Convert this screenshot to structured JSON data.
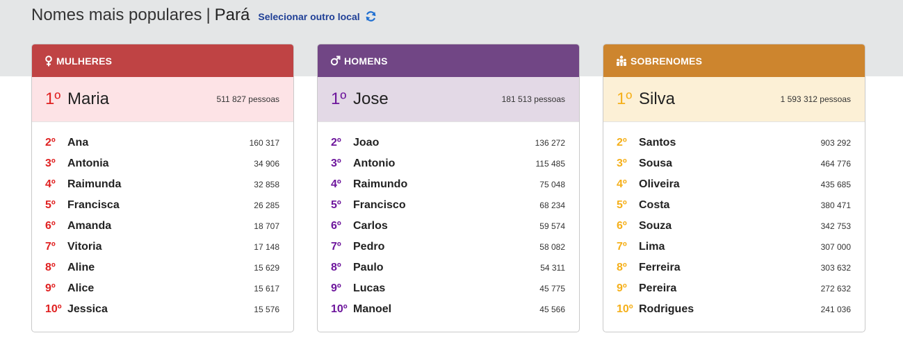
{
  "header": {
    "title": "Nomes mais populares",
    "separator": "|",
    "place": "Pará",
    "change_location": "Selecionar outro local",
    "refresh_icon": "refresh-icon"
  },
  "colors": {
    "women_head": "#bf4344",
    "men_head": "#714685",
    "surnames_head": "#cd852e",
    "women_rank": "#e02121",
    "men_rank": "#6d169c",
    "surnames_rank": "#f5b01b"
  },
  "women": {
    "title": "MULHERES",
    "icon": "female-icon",
    "top": {
      "rank": "1º",
      "name": "Maria",
      "count": "511 827 pessoas"
    },
    "items": [
      {
        "rank": "2º",
        "name": "Ana",
        "count": "160 317"
      },
      {
        "rank": "3º",
        "name": "Antonia",
        "count": "34 906"
      },
      {
        "rank": "4º",
        "name": "Raimunda",
        "count": "32 858"
      },
      {
        "rank": "5º",
        "name": "Francisca",
        "count": "26 285"
      },
      {
        "rank": "6º",
        "name": "Amanda",
        "count": "18 707"
      },
      {
        "rank": "7º",
        "name": "Vitoria",
        "count": "17 148"
      },
      {
        "rank": "8º",
        "name": "Aline",
        "count": "15 629"
      },
      {
        "rank": "9º",
        "name": "Alice",
        "count": "15 617"
      },
      {
        "rank": "10º",
        "name": "Jessica",
        "count": "15 576"
      }
    ]
  },
  "men": {
    "title": "HOMENS",
    "icon": "male-icon",
    "top": {
      "rank": "1º",
      "name": "Jose",
      "count": "181 513 pessoas"
    },
    "items": [
      {
        "rank": "2º",
        "name": "Joao",
        "count": "136 272"
      },
      {
        "rank": "3º",
        "name": "Antonio",
        "count": "115 485"
      },
      {
        "rank": "4º",
        "name": "Raimundo",
        "count": "75 048"
      },
      {
        "rank": "5º",
        "name": "Francisco",
        "count": "68 234"
      },
      {
        "rank": "6º",
        "name": "Carlos",
        "count": "59 574"
      },
      {
        "rank": "7º",
        "name": "Pedro",
        "count": "58 082"
      },
      {
        "rank": "8º",
        "name": "Paulo",
        "count": "54 311"
      },
      {
        "rank": "9º",
        "name": "Lucas",
        "count": "45 775"
      },
      {
        "rank": "10º",
        "name": "Manoel",
        "count": "45 566"
      }
    ]
  },
  "surnames": {
    "title": "SOBRENOMES",
    "icon": "family-icon",
    "top": {
      "rank": "1º",
      "name": "Silva",
      "count": "1 593 312 pessoas"
    },
    "items": [
      {
        "rank": "2º",
        "name": "Santos",
        "count": "903 292"
      },
      {
        "rank": "3º",
        "name": "Sousa",
        "count": "464 776"
      },
      {
        "rank": "4º",
        "name": "Oliveira",
        "count": "435 685"
      },
      {
        "rank": "5º",
        "name": "Costa",
        "count": "380 471"
      },
      {
        "rank": "6º",
        "name": "Souza",
        "count": "342 753"
      },
      {
        "rank": "7º",
        "name": "Lima",
        "count": "307 000"
      },
      {
        "rank": "8º",
        "name": "Ferreira",
        "count": "303 632"
      },
      {
        "rank": "9º",
        "name": "Pereira",
        "count": "272 632"
      },
      {
        "rank": "10º",
        "name": "Rodrigues",
        "count": "241 036"
      }
    ]
  }
}
